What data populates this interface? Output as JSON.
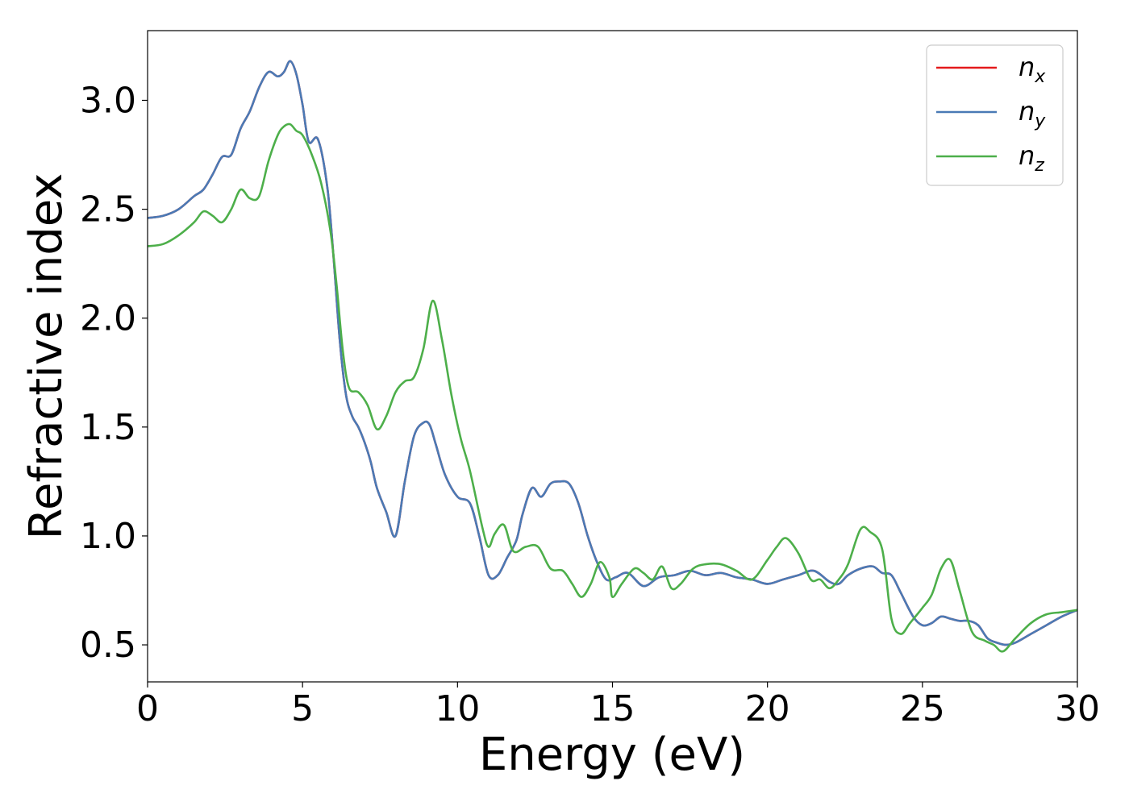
{
  "chart_data": {
    "type": "line",
    "title": "",
    "xlabel": "Energy (eV)",
    "ylabel": "Refractive index",
    "xlim": [
      0,
      30
    ],
    "ylim": [
      0.33,
      3.32
    ],
    "xticks": [
      0,
      5,
      10,
      15,
      20,
      25,
      30
    ],
    "xtick_labels": [
      "0",
      "5",
      "10",
      "15",
      "20",
      "25",
      "30"
    ],
    "yticks": [
      0.5,
      1.0,
      1.5,
      2.0,
      2.5,
      3.0
    ],
    "ytick_labels": [
      "0.5",
      "1.0",
      "1.5",
      "2.0",
      "2.5",
      "3.0"
    ],
    "grid": false,
    "legend_position": "top-right",
    "series": [
      {
        "name": "n_x",
        "label_base": "n",
        "label_sub": "x",
        "color": "#e41a1c",
        "x": [
          0,
          0.5,
          1.0,
          1.5,
          1.8,
          2.1,
          2.4,
          2.7,
          3.0,
          3.3,
          3.6,
          3.9,
          4.2,
          4.4,
          4.6,
          4.8,
          5.0,
          5.2,
          5.5,
          5.8,
          6.0,
          6.2,
          6.4,
          6.6,
          6.8,
          7.0,
          7.2,
          7.4,
          7.7,
          8.0,
          8.3,
          8.6,
          8.9,
          9.1,
          9.3,
          9.6,
          10.0,
          10.4,
          10.7,
          11.0,
          11.3,
          11.6,
          11.9,
          12.1,
          12.4,
          12.7,
          13.0,
          13.3,
          13.6,
          13.9,
          14.2,
          14.5,
          14.8,
          15.1,
          15.5,
          16.0,
          16.5,
          17.0,
          17.5,
          18.0,
          18.5,
          19.0,
          19.5,
          20.0,
          20.5,
          21.0,
          21.5,
          22.0,
          22.3,
          22.6,
          23.0,
          23.4,
          23.7,
          24.0,
          24.3,
          24.7,
          25.0,
          25.3,
          25.6,
          25.9,
          26.2,
          26.5,
          26.8,
          27.1,
          27.4,
          27.7,
          28.0,
          28.5,
          29.0,
          29.5,
          30.0
        ],
        "y": [
          2.46,
          2.47,
          2.5,
          2.56,
          2.59,
          2.66,
          2.74,
          2.75,
          2.87,
          2.95,
          3.06,
          3.13,
          3.11,
          3.13,
          3.18,
          3.12,
          2.98,
          2.81,
          2.82,
          2.6,
          2.28,
          1.9,
          1.65,
          1.55,
          1.5,
          1.43,
          1.34,
          1.22,
          1.11,
          1.0,
          1.25,
          1.46,
          1.52,
          1.51,
          1.42,
          1.28,
          1.18,
          1.15,
          1.0,
          0.82,
          0.82,
          0.9,
          0.98,
          1.1,
          1.22,
          1.18,
          1.24,
          1.25,
          1.24,
          1.15,
          1.0,
          0.88,
          0.8,
          0.81,
          0.83,
          0.77,
          0.81,
          0.82,
          0.84,
          0.82,
          0.83,
          0.81,
          0.8,
          0.78,
          0.8,
          0.82,
          0.84,
          0.79,
          0.78,
          0.82,
          0.85,
          0.86,
          0.83,
          0.82,
          0.74,
          0.63,
          0.59,
          0.6,
          0.63,
          0.62,
          0.61,
          0.61,
          0.59,
          0.53,
          0.51,
          0.5,
          0.51,
          0.55,
          0.59,
          0.63,
          0.66
        ]
      },
      {
        "name": "n_y",
        "label_base": "n",
        "label_sub": "y",
        "color": "#4a7ab5",
        "x": [
          0,
          0.5,
          1.0,
          1.5,
          1.8,
          2.1,
          2.4,
          2.7,
          3.0,
          3.3,
          3.6,
          3.9,
          4.2,
          4.4,
          4.6,
          4.8,
          5.0,
          5.2,
          5.5,
          5.8,
          6.0,
          6.2,
          6.4,
          6.6,
          6.8,
          7.0,
          7.2,
          7.4,
          7.7,
          8.0,
          8.3,
          8.6,
          8.9,
          9.1,
          9.3,
          9.6,
          10.0,
          10.4,
          10.7,
          11.0,
          11.3,
          11.6,
          11.9,
          12.1,
          12.4,
          12.7,
          13.0,
          13.3,
          13.6,
          13.9,
          14.2,
          14.5,
          14.8,
          15.1,
          15.5,
          16.0,
          16.5,
          17.0,
          17.5,
          18.0,
          18.5,
          19.0,
          19.5,
          20.0,
          20.5,
          21.0,
          21.5,
          22.0,
          22.3,
          22.6,
          23.0,
          23.4,
          23.7,
          24.0,
          24.3,
          24.7,
          25.0,
          25.3,
          25.6,
          25.9,
          26.2,
          26.5,
          26.8,
          27.1,
          27.4,
          27.7,
          28.0,
          28.5,
          29.0,
          29.5,
          30.0
        ],
        "y": [
          2.46,
          2.47,
          2.5,
          2.56,
          2.59,
          2.66,
          2.74,
          2.75,
          2.87,
          2.95,
          3.06,
          3.13,
          3.11,
          3.13,
          3.18,
          3.12,
          2.98,
          2.81,
          2.82,
          2.6,
          2.28,
          1.9,
          1.65,
          1.55,
          1.5,
          1.43,
          1.34,
          1.22,
          1.11,
          1.0,
          1.25,
          1.46,
          1.52,
          1.51,
          1.42,
          1.28,
          1.18,
          1.15,
          1.0,
          0.82,
          0.82,
          0.9,
          0.98,
          1.1,
          1.22,
          1.18,
          1.24,
          1.25,
          1.24,
          1.15,
          1.0,
          0.88,
          0.8,
          0.81,
          0.83,
          0.77,
          0.81,
          0.82,
          0.84,
          0.82,
          0.83,
          0.81,
          0.8,
          0.78,
          0.8,
          0.82,
          0.84,
          0.79,
          0.78,
          0.82,
          0.85,
          0.86,
          0.83,
          0.82,
          0.74,
          0.63,
          0.59,
          0.6,
          0.63,
          0.62,
          0.61,
          0.61,
          0.59,
          0.53,
          0.51,
          0.5,
          0.51,
          0.55,
          0.59,
          0.63,
          0.66
        ]
      },
      {
        "name": "n_z",
        "label_base": "n",
        "label_sub": "z",
        "color": "#4daf4a",
        "x": [
          0,
          0.5,
          1.0,
          1.5,
          1.8,
          2.1,
          2.4,
          2.7,
          3.0,
          3.3,
          3.6,
          3.9,
          4.2,
          4.4,
          4.6,
          4.8,
          5.0,
          5.3,
          5.6,
          5.9,
          6.1,
          6.3,
          6.5,
          6.8,
          7.1,
          7.4,
          7.7,
          8.0,
          8.3,
          8.6,
          8.9,
          9.2,
          9.5,
          9.8,
          10.1,
          10.4,
          10.8,
          11.0,
          11.2,
          11.5,
          11.8,
          12.2,
          12.6,
          13.0,
          13.4,
          13.7,
          14.0,
          14.3,
          14.6,
          14.9,
          15.0,
          15.3,
          15.7,
          16.0,
          16.3,
          16.6,
          16.9,
          17.2,
          17.6,
          18.0,
          18.5,
          19.0,
          19.5,
          20.0,
          20.3,
          20.6,
          21.0,
          21.4,
          21.7,
          22.0,
          22.3,
          22.6,
          23.0,
          23.3,
          23.7,
          24.0,
          24.3,
          24.6,
          25.0,
          25.3,
          25.6,
          25.9,
          26.2,
          26.6,
          27.0,
          27.3,
          27.6,
          28.0,
          28.5,
          29.0,
          29.5,
          30.0
        ],
        "y": [
          2.33,
          2.34,
          2.38,
          2.44,
          2.49,
          2.47,
          2.44,
          2.5,
          2.59,
          2.55,
          2.56,
          2.72,
          2.84,
          2.88,
          2.89,
          2.86,
          2.84,
          2.75,
          2.62,
          2.4,
          2.15,
          1.85,
          1.68,
          1.66,
          1.6,
          1.49,
          1.55,
          1.66,
          1.71,
          1.73,
          1.86,
          2.08,
          1.9,
          1.65,
          1.45,
          1.3,
          1.04,
          0.95,
          1.01,
          1.05,
          0.93,
          0.95,
          0.95,
          0.85,
          0.84,
          0.78,
          0.72,
          0.78,
          0.88,
          0.81,
          0.72,
          0.78,
          0.85,
          0.83,
          0.8,
          0.86,
          0.76,
          0.78,
          0.85,
          0.87,
          0.87,
          0.84,
          0.8,
          0.89,
          0.95,
          0.99,
          0.92,
          0.8,
          0.8,
          0.76,
          0.8,
          0.87,
          1.03,
          1.02,
          0.94,
          0.62,
          0.55,
          0.6,
          0.67,
          0.73,
          0.85,
          0.89,
          0.75,
          0.56,
          0.52,
          0.5,
          0.47,
          0.53,
          0.6,
          0.64,
          0.65,
          0.66
        ]
      }
    ]
  }
}
